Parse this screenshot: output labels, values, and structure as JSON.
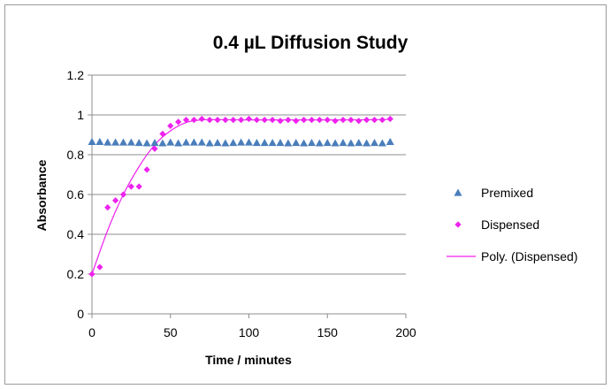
{
  "chart_data": {
    "type": "scatter",
    "title": "0.4 µL Diffusion Study",
    "xlabel": "Time / minutes",
    "ylabel": "Absorbance",
    "xlim": [
      0,
      200
    ],
    "ylim": [
      0,
      1.2
    ],
    "xticks": [
      "0",
      "50",
      "100",
      "150",
      "200"
    ],
    "yticks": [
      "0",
      "0.2",
      "0.4",
      "0.6",
      "0.8",
      "1",
      "1.2"
    ],
    "grid": "horizontal",
    "legend_position": "right",
    "series": [
      {
        "name": "Premixed",
        "marker": "triangle",
        "color": "#4a7ebb",
        "x": [
          0,
          5,
          10,
          15,
          20,
          25,
          30,
          35,
          40,
          45,
          50,
          55,
          60,
          65,
          70,
          75,
          80,
          85,
          90,
          95,
          100,
          105,
          110,
          115,
          120,
          125,
          130,
          135,
          140,
          145,
          150,
          155,
          160,
          165,
          170,
          175,
          180,
          185,
          190
        ],
        "y": [
          0.865,
          0.865,
          0.862,
          0.862,
          0.862,
          0.862,
          0.86,
          0.858,
          0.86,
          0.858,
          0.862,
          0.858,
          0.862,
          0.862,
          0.862,
          0.858,
          0.86,
          0.858,
          0.86,
          0.862,
          0.862,
          0.86,
          0.86,
          0.86,
          0.86,
          0.858,
          0.86,
          0.858,
          0.86,
          0.858,
          0.86,
          0.858,
          0.86,
          0.858,
          0.86,
          0.858,
          0.86,
          0.858,
          0.865
        ]
      },
      {
        "name": "Dispensed",
        "marker": "diamond",
        "color": "#ee22ee",
        "x": [
          0,
          5,
          10,
          15,
          20,
          25,
          30,
          35,
          40,
          45,
          50,
          55,
          60,
          65,
          70,
          75,
          80,
          85,
          90,
          95,
          100,
          105,
          110,
          115,
          120,
          125,
          130,
          135,
          140,
          145,
          150,
          155,
          160,
          165,
          170,
          175,
          180,
          185,
          190
        ],
        "y": [
          0.2,
          0.235,
          0.535,
          0.57,
          0.6,
          0.64,
          0.64,
          0.725,
          0.83,
          0.905,
          0.945,
          0.965,
          0.975,
          0.975,
          0.98,
          0.975,
          0.975,
          0.975,
          0.975,
          0.975,
          0.98,
          0.975,
          0.975,
          0.975,
          0.97,
          0.975,
          0.97,
          0.975,
          0.975,
          0.975,
          0.975,
          0.97,
          0.975,
          0.975,
          0.97,
          0.975,
          0.975,
          0.975,
          0.98
        ]
      },
      {
        "name": "Poly. (Dispensed)",
        "marker": "line",
        "color": "#ee22ee",
        "x": [
          0,
          10,
          20,
          30,
          40,
          50,
          60,
          70,
          80,
          100,
          120,
          140,
          160,
          180,
          190
        ],
        "y": [
          0.2,
          0.42,
          0.6,
          0.74,
          0.85,
          0.92,
          0.962,
          0.975,
          0.976,
          0.975,
          0.975,
          0.975,
          0.975,
          0.976,
          0.978
        ]
      }
    ]
  }
}
